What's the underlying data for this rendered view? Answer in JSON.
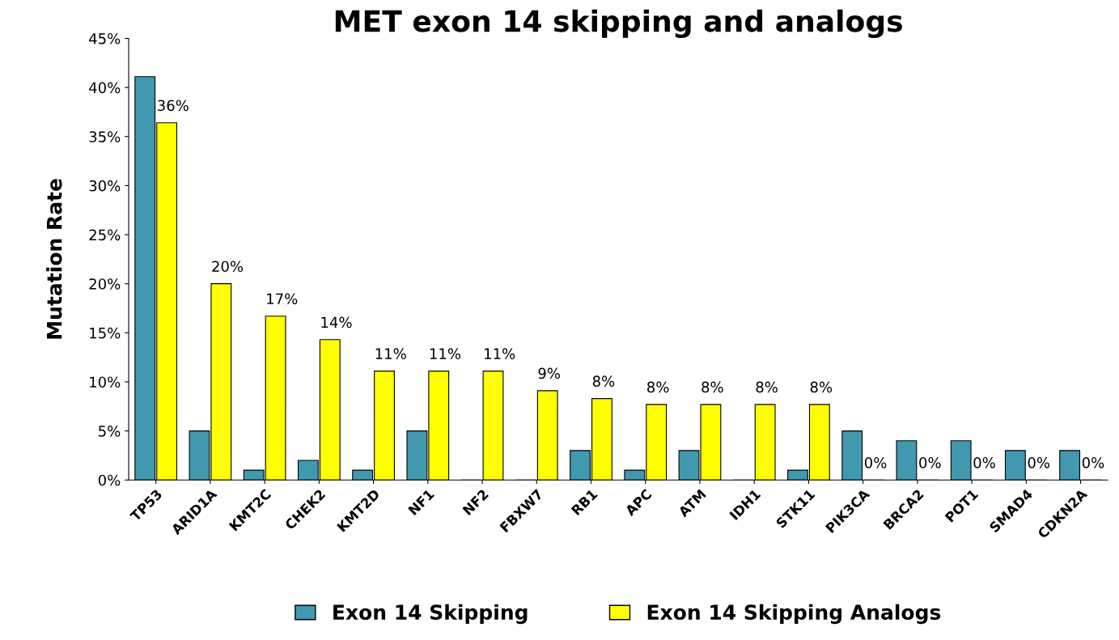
{
  "chart_data": {
    "type": "bar",
    "title": "MET exon 14 skipping and analogs",
    "ylabel": "Mutation Rate",
    "categories": [
      "TP53",
      "ARID1A",
      "KMT2C",
      "CHEK2",
      "KMT2D",
      "NF1",
      "NF2",
      "FBXW7",
      "RB1",
      "APC",
      "ATM",
      "IDH1",
      "STK11",
      "PIK3CA",
      "BRCA2",
      "POT1",
      "SMAD4",
      "CDKN2A"
    ],
    "series": [
      {
        "name": "Exon 14 Skipping",
        "color": "#4198af",
        "values": [
          41.1,
          5,
          1,
          2,
          1,
          5,
          0,
          0,
          3,
          1,
          3,
          0,
          1,
          5,
          4,
          4,
          3,
          3
        ]
      },
      {
        "name": "Exon 14 Skipping Analogs",
        "color": "#ffff00",
        "values": [
          36.4,
          20,
          16.7,
          14.3,
          11.1,
          11.1,
          11.1,
          9.1,
          8.3,
          7.7,
          7.7,
          7.7,
          7.7,
          0,
          0,
          0,
          0,
          0
        ],
        "value_labels": [
          "36%",
          "20%",
          "17%",
          "14%",
          "11%",
          "11%",
          "11%",
          "9%",
          "8%",
          "8%",
          "8%",
          "8%",
          "8%",
          "0%",
          "0%",
          "0%",
          "0%",
          "0%"
        ]
      }
    ],
    "ylim": [
      0,
      45
    ],
    "yticks": [
      {
        "value": 0,
        "label": "0%"
      },
      {
        "value": 5,
        "label": "5%"
      },
      {
        "value": 10,
        "label": "10%"
      },
      {
        "value": 15,
        "label": "15%"
      },
      {
        "value": 20,
        "label": "20%"
      },
      {
        "value": 25,
        "label": "25%"
      },
      {
        "value": 30,
        "label": "30%"
      },
      {
        "value": 35,
        "label": "35%"
      },
      {
        "value": 40,
        "label": "40%"
      },
      {
        "value": 45,
        "label": "45%"
      }
    ],
    "grid": false,
    "legend": "bottom"
  }
}
